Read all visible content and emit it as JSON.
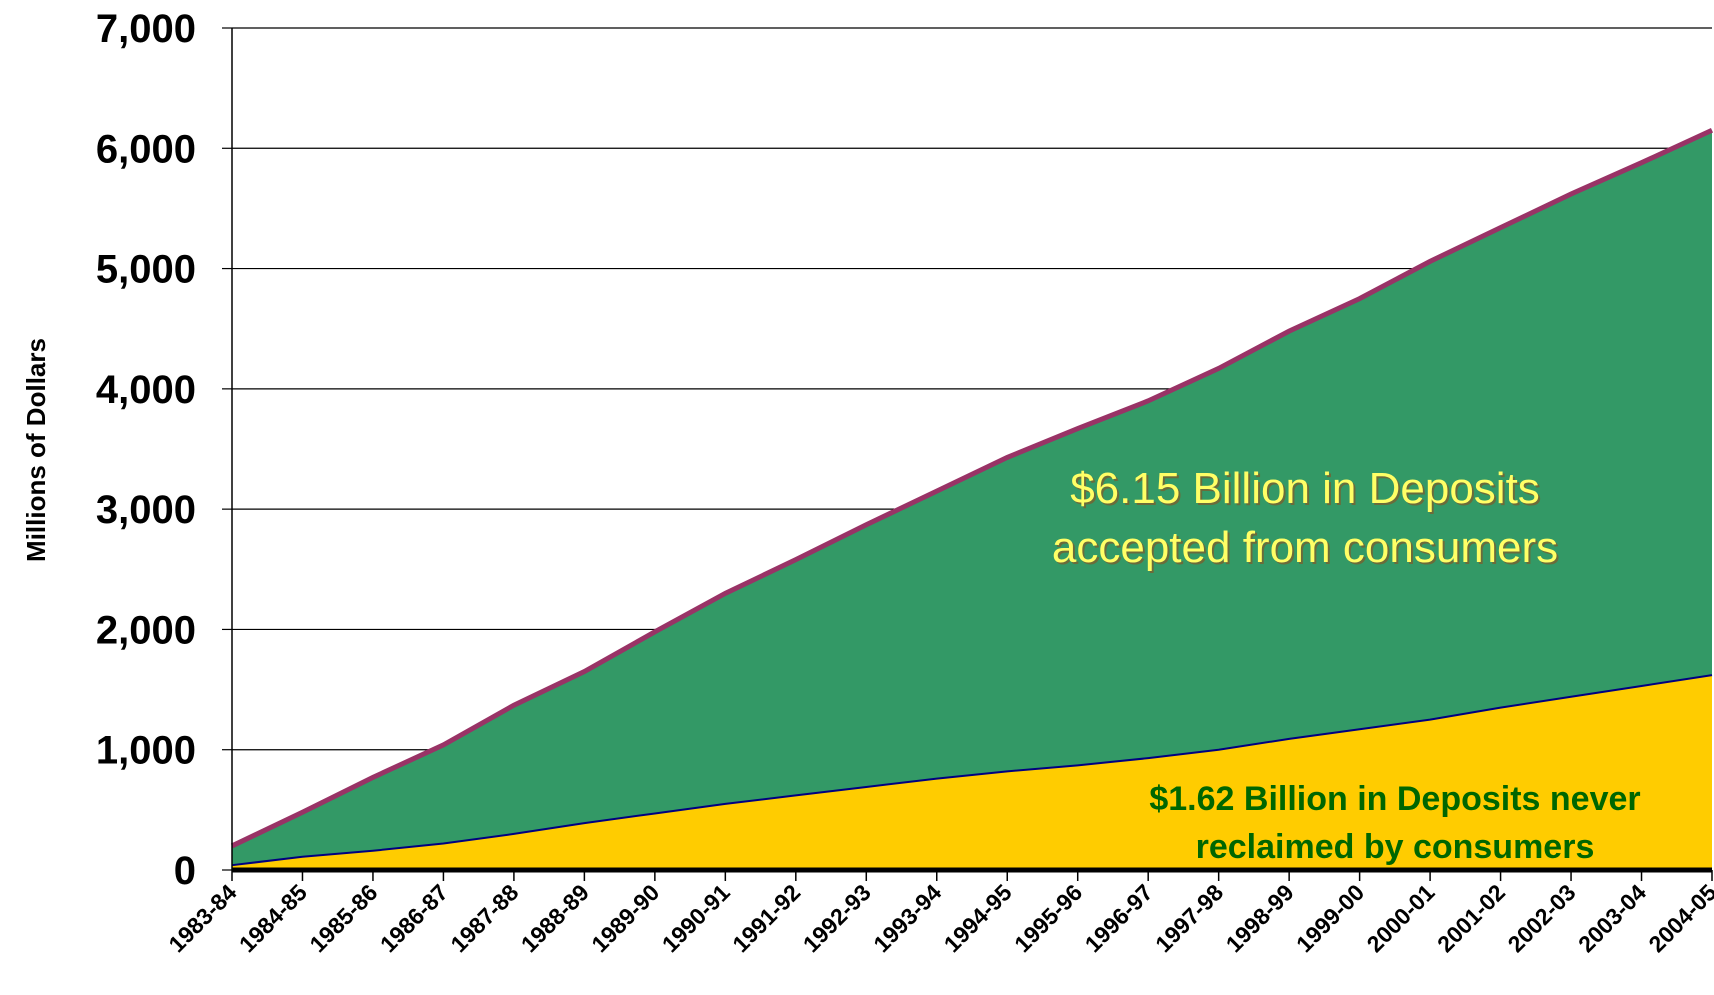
{
  "chart_data": {
    "type": "area",
    "title": "",
    "xlabel": "",
    "ylabel": "Millions of Dollars",
    "ylim": [
      0,
      7000
    ],
    "yticks": [
      "0",
      "1,000",
      "2,000",
      "3,000",
      "4,000",
      "5,000",
      "6,000",
      "7,000"
    ],
    "grid": true,
    "categories": [
      "1983-84",
      "1984-85",
      "1985-86",
      "1986-87",
      "1987-88",
      "1988-89",
      "1989-90",
      "1990-91",
      "1991-92",
      "1992-93",
      "1993-94",
      "1994-95",
      "1995-96",
      "1996-97",
      "1997-98",
      "1998-99",
      "1999-00",
      "2000-01",
      "2001-02",
      "2002-03",
      "2003-04",
      "2004-05"
    ],
    "series": [
      {
        "values": [
          200,
          480,
          770,
          1040,
          1370,
          1650,
          1980,
          2300,
          2580,
          2870,
          3150,
          3430,
          3670,
          3900,
          4170,
          4480,
          4750,
          5060,
          5340,
          5620,
          5880,
          6150
        ],
        "color": "#339966",
        "line_color": "#993366"
      },
      {
        "values": [
          40,
          110,
          160,
          220,
          300,
          390,
          470,
          550,
          620,
          690,
          760,
          820,
          870,
          930,
          1000,
          1090,
          1170,
          1250,
          1350,
          1440,
          1530,
          1620
        ],
        "color": "#ffcc00",
        "line_color": "#000080"
      }
    ],
    "annotations": {
      "deposits_accepted": {
        "line1": "$6.15 Billion in Deposits",
        "line2": "accepted from consumers",
        "color": "#ffff66"
      },
      "deposits_unclaimed": {
        "line1": "$1.62 Billion in Deposits never",
        "line2": "reclaimed by consumers",
        "color": "#006600"
      }
    }
  }
}
